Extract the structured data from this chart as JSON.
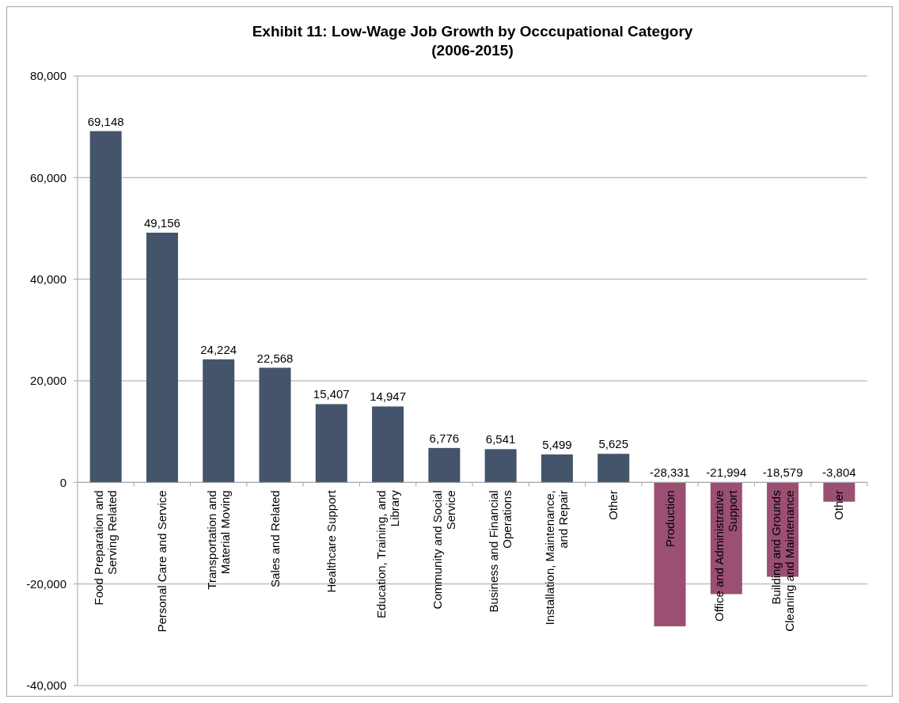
{
  "chart_data": {
    "type": "bar",
    "title": "Exhibit 11: Low-Wage  Job Growth by Occcupational Category",
    "subtitle": "(2006-2015)",
    "categories": [
      "Food Preparation and Serving Related",
      "Personal Care and Service",
      "Transportation and Material Moving",
      "Sales and Related",
      "Healthcare Support",
      "Education, Training, and Library",
      "Community and Social Service",
      "Business and Financial Operations",
      "Installation, Maintenance, and Repair",
      "Other",
      "Production",
      "Office and Administrative Support",
      "Building and Grounds Cleaning and Maintenance",
      "Other"
    ],
    "values": [
      69148,
      49156,
      24224,
      22568,
      15407,
      14947,
      6776,
      6541,
      5499,
      5625,
      -28331,
      -21994,
      -18579,
      -3804
    ],
    "value_labels": [
      "69,148",
      "49,156",
      "24,224",
      "22,568",
      "15,407",
      "14,947",
      "6,776",
      "6,541",
      "5,499",
      "5,625",
      "-28,331",
      "-21,994",
      "-18,579",
      "-3,804"
    ],
    "colors": [
      "#44546a",
      "#44546a",
      "#44546a",
      "#44546a",
      "#44546a",
      "#44546a",
      "#44546a",
      "#44546a",
      "#44546a",
      "#44546a",
      "#9b4f72",
      "#9b4f72",
      "#9b4f72",
      "#9b4f72"
    ],
    "ylim": [
      -40000,
      80000
    ],
    "yticks": [
      {
        "value": -40000,
        "label": "-40,000"
      },
      {
        "value": -20000,
        "label": "-20,000"
      },
      0,
      {
        "value": 20000,
        "label": "20,000"
      },
      {
        "value": 40000,
        "label": "40,000"
      },
      {
        "value": 60000,
        "label": "60,000"
      },
      {
        "value": 80000,
        "label": "80,000"
      }
    ],
    "grid": "y"
  }
}
